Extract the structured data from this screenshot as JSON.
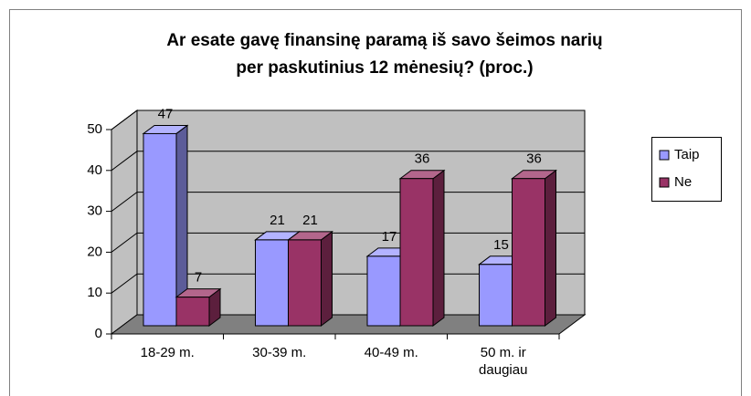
{
  "chart_data": {
    "type": "bar3d",
    "title": [
      "Ar esate gavę finansinę paramą iš savo šeimos narių",
      "per paskutinius 12 mėnesių? (proc.)"
    ],
    "categories": [
      "18-29 m.",
      "30-39 m.",
      "40-49 m.",
      "50 m. ir daugiau"
    ],
    "series": [
      {
        "name": "Taip",
        "color": "#9999ff",
        "values": [
          47,
          21,
          17,
          15
        ]
      },
      {
        "name": "Ne",
        "color": "#993366",
        "values": [
          7,
          21,
          36,
          36
        ]
      }
    ],
    "ylim": [
      0,
      50
    ],
    "yticks": [
      0,
      10,
      20,
      30,
      40,
      50
    ],
    "grid": true,
    "legend": "right"
  }
}
